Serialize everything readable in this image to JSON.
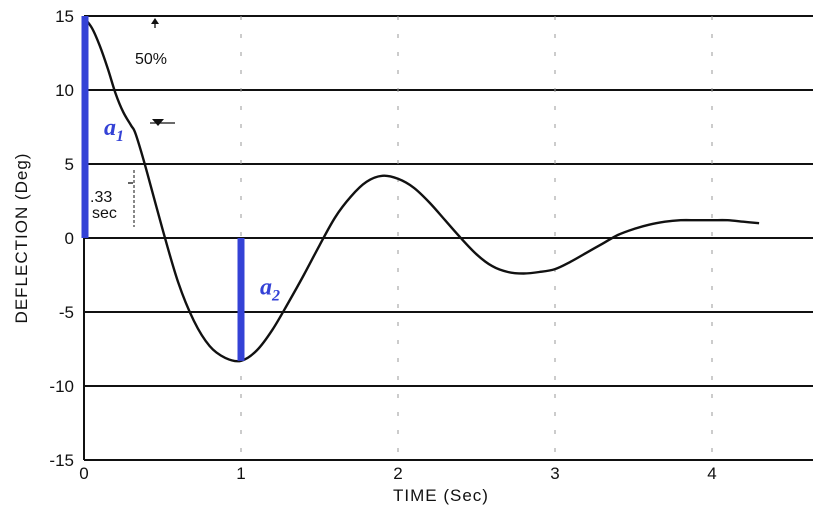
{
  "chart_data": {
    "type": "line",
    "title": "",
    "xlabel": "TIME (Sec)",
    "ylabel": "DEFLECTION (Deg)",
    "xlim": [
      0,
      4.7
    ],
    "ylim": [
      -15,
      15
    ],
    "x_ticks": [
      0,
      1,
      2,
      3,
      4
    ],
    "y_ticks": [
      15,
      10,
      5,
      0,
      -5,
      -10,
      -15
    ],
    "y_tick_labels": [
      "15",
      "10",
      "5",
      "0",
      "-5",
      "-10",
      "-15"
    ],
    "grid": "horizontal lines",
    "series": [
      {
        "x": [
          0,
          0.05,
          0.1,
          0.15,
          0.2,
          0.25,
          0.3,
          0.33,
          0.4,
          0.5,
          0.6,
          0.7,
          0.8,
          0.9,
          1.0,
          1.1,
          1.2,
          1.3,
          1.4,
          1.5,
          1.6,
          1.7,
          1.8,
          1.9,
          2.0,
          2.1,
          2.2,
          2.3,
          2.4,
          2.5,
          2.6,
          2.7,
          2.8,
          2.9,
          3.0,
          3.1,
          3.2,
          3.3,
          3.4,
          3.5,
          3.6,
          3.7,
          3.8,
          3.9,
          4.0,
          4.1,
          4.2,
          4.3
        ],
        "y": [
          14.9,
          14.2,
          13.0,
          11.5,
          9.8,
          8.5,
          7.6,
          7.0,
          4.5,
          0.6,
          -3.0,
          -5.6,
          -7.3,
          -8.1,
          -8.3,
          -7.6,
          -6.2,
          -4.4,
          -2.5,
          -0.5,
          1.4,
          2.8,
          3.8,
          4.2,
          4.0,
          3.4,
          2.4,
          1.2,
          0.0,
          -1.1,
          -1.9,
          -2.3,
          -2.4,
          -2.3,
          -2.1,
          -1.6,
          -1.0,
          -0.4,
          0.2,
          0.6,
          0.9,
          1.1,
          1.2,
          1.2,
          1.2,
          1.2,
          1.1,
          1.0
        ]
      }
    ],
    "annotations": [
      {
        "text": "50%",
        "x": 0.45,
        "y": 13.8
      },
      {
        "text": ".33",
        "x": 0.14,
        "y": 2.7
      },
      {
        "text": "sec",
        "x": 0.14,
        "y": 1.6
      }
    ],
    "amplitude_markers": [
      {
        "label": "a",
        "subscript": "1",
        "x": 0,
        "y_from": 0,
        "y_to": 15
      },
      {
        "label": "a",
        "subscript": "2",
        "x": 1,
        "y_from": -8.3,
        "y_to": 0
      }
    ],
    "marker_color": "#3442d6",
    "curve_color": "#111111"
  }
}
